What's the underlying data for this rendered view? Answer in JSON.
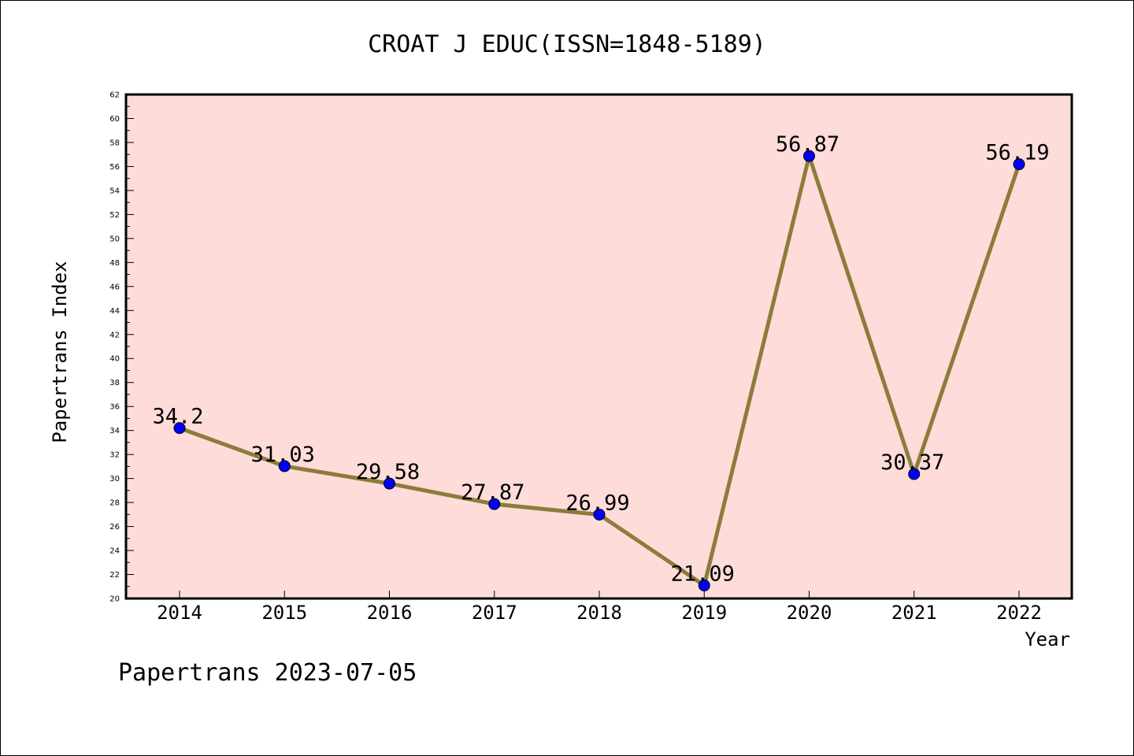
{
  "footer": "Papertrans 2023-07-05",
  "chart_data": {
    "type": "line",
    "title": "CROAT J EDUC(ISSN=1848-5189)",
    "xlabel": "Year",
    "ylabel": "Papertrans Index",
    "categories": [
      "2014",
      "2015",
      "2016",
      "2017",
      "2018",
      "2019",
      "2020",
      "2021",
      "2022"
    ],
    "values": [
      34.2,
      31.03,
      29.58,
      27.87,
      26.99,
      21.09,
      56.87,
      30.37,
      56.19
    ],
    "data_labels": [
      "34.2",
      "31.03",
      "29.58",
      "27.87",
      "26.99",
      "21.09",
      "56.87",
      "30.37",
      "56.19"
    ],
    "ylim": [
      20,
      62
    ],
    "yticks": [
      "20",
      "22",
      "24",
      "26",
      "28",
      "30",
      "32",
      "34",
      "36",
      "38",
      "40",
      "42",
      "44",
      "46",
      "48",
      "50",
      "52",
      "54",
      "56",
      "58",
      "60",
      "62"
    ],
    "grid": false,
    "colors": {
      "plot_background": "#fddcda",
      "line": "#8b7d3a",
      "marker": "#0000ff"
    }
  }
}
